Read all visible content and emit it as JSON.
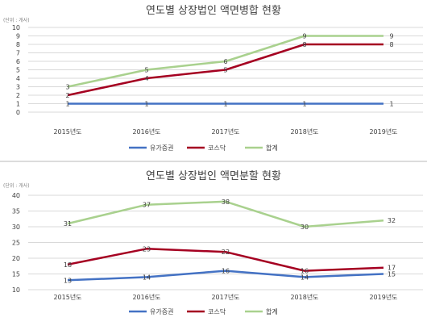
{
  "colors": {
    "stock": "#4472C4",
    "kosdaq": "#A50021",
    "total": "#A9D18E",
    "grid": "#d9d9d9",
    "text": "#404040"
  },
  "chart_data": [
    {
      "type": "line",
      "title": "연도별 상장법인 액면병합 현황",
      "unit_label": "(단위 : 개사)",
      "categories": [
        "2015년도",
        "2016년도",
        "2017년도",
        "2018년도",
        "2019년도"
      ],
      "ylim": [
        0,
        10
      ],
      "yticks": [
        0,
        1,
        2,
        3,
        4,
        5,
        6,
        7,
        8,
        9,
        10
      ],
      "grid": true,
      "legend_position": "bottom",
      "series": [
        {
          "name": "유가증권",
          "color": "#4472C4",
          "values": [
            1,
            1,
            1,
            1,
            1
          ]
        },
        {
          "name": "코스닥",
          "color": "#A50021",
          "values": [
            2,
            4,
            5,
            8,
            8
          ]
        },
        {
          "name": "합계",
          "color": "#A9D18E",
          "values": [
            3,
            5,
            6,
            9,
            9
          ]
        }
      ]
    },
    {
      "type": "line",
      "title": "연도별 상장법인 액면분할 현황",
      "unit_label": "(단위 : 개사)",
      "categories": [
        "2015년도",
        "2016년도",
        "2017년도",
        "2018년도",
        "2019년도"
      ],
      "ylim": [
        10,
        40
      ],
      "yticks": [
        10,
        15,
        20,
        25,
        30,
        35,
        40
      ],
      "grid": true,
      "legend_position": "bottom",
      "series": [
        {
          "name": "유가증권",
          "color": "#4472C4",
          "values": [
            13,
            14,
            16,
            14,
            15
          ]
        },
        {
          "name": "코스닥",
          "color": "#A50021",
          "values": [
            18,
            23,
            22,
            16,
            17
          ]
        },
        {
          "name": "합계",
          "color": "#A9D18E",
          "values": [
            31,
            37,
            38,
            30,
            32
          ]
        }
      ]
    }
  ]
}
